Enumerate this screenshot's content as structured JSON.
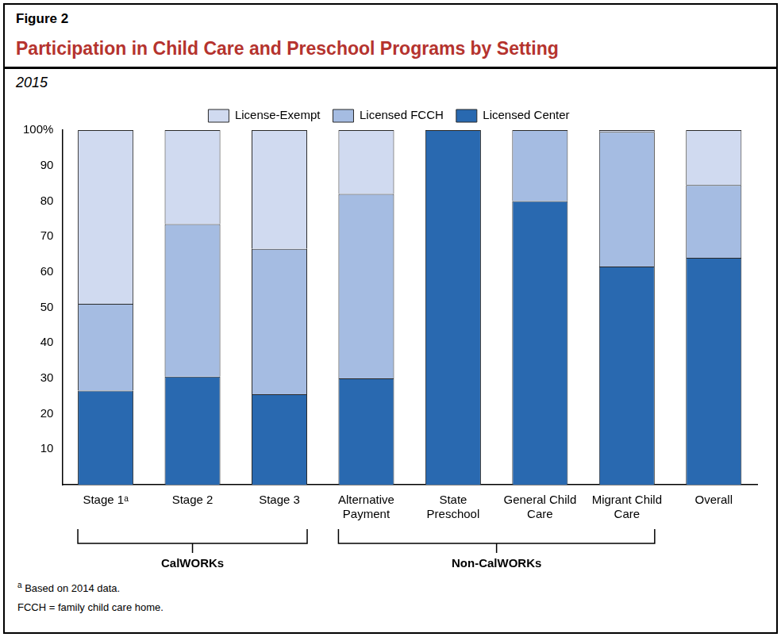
{
  "chart_data": {
    "type": "bar",
    "figure_label": "Figure 2",
    "title": "Participation in Child Care and Preschool Programs by Setting",
    "subtitle": "2015",
    "categories": [
      "Stage 1ᵃ",
      "Stage 2",
      "Stage 3",
      "Alternative Payment",
      "State Preschool",
      "General Child Care",
      "Migrant Child Care",
      "Overall"
    ],
    "series": [
      {
        "name": "Licensed Center",
        "color": "#2969b0",
        "values": [
          26.5,
          30.5,
          25.5,
          30,
          100,
          80,
          61.5,
          64
        ]
      },
      {
        "name": "Licensed FCCH",
        "color": "#a5bce2",
        "values": [
          24.5,
          43,
          41,
          52,
          0,
          20,
          38,
          20.5
        ]
      },
      {
        "name": "License-Exempt",
        "color": "#d0daf0",
        "values": [
          49,
          26.5,
          33.5,
          18,
          0,
          0,
          0.5,
          15.5
        ]
      }
    ],
    "ylim": [
      0,
      100
    ],
    "yticks": [
      10,
      20,
      30,
      40,
      50,
      60,
      70,
      80,
      90,
      {
        "value": 100,
        "label": "100%"
      }
    ],
    "stacked": true,
    "grid": false,
    "legend": "top",
    "groups": [
      {
        "name": "CalWORKs",
        "members": [
          "Stage 1ᵃ",
          "Stage 2",
          "Stage 3"
        ]
      },
      {
        "name": "Non-CalWORKs",
        "members": [
          "Alternative Payment",
          "State Preschool",
          "General Child Care",
          "Migrant Child Care"
        ]
      }
    ],
    "footnotes": [
      {
        "marker": "a",
        "text": "Based on 2014 data."
      },
      {
        "text": "FCCH = family child care home."
      }
    ]
  }
}
